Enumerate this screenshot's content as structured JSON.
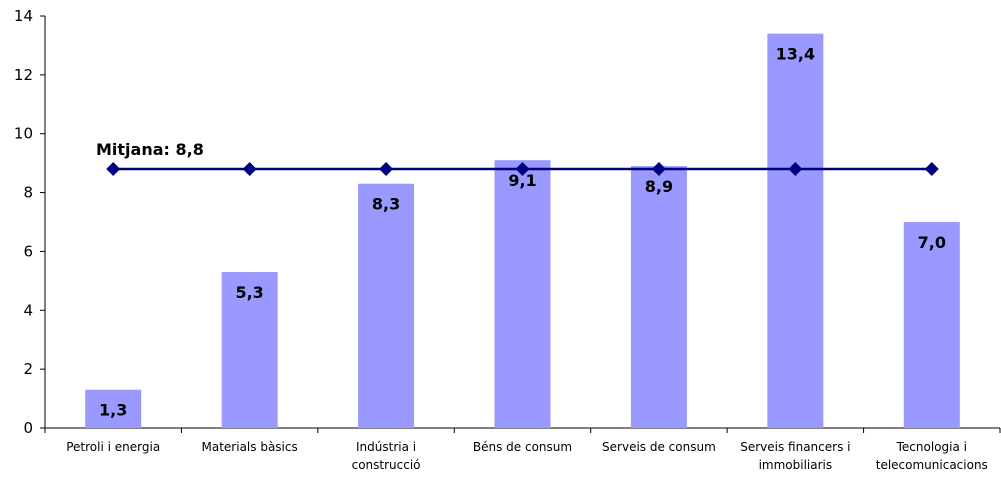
{
  "chart_data": {
    "type": "bar",
    "categories": [
      [
        "Petroli i energia"
      ],
      [
        "Materials bàsics"
      ],
      [
        "Indústria i",
        "construcció"
      ],
      [
        "Béns de consum"
      ],
      [
        "Serveis de consum"
      ],
      [
        "Serveis financers i",
        "immobiliaris"
      ],
      [
        "Tecnologia i",
        "telecomunicacions"
      ]
    ],
    "values": [
      1.3,
      5.3,
      8.3,
      9.1,
      8.9,
      13.4,
      7.0
    ],
    "data_labels": [
      "1,3",
      "5,3",
      "8,3",
      "9,1",
      "8,9",
      "13,4",
      "7,0"
    ],
    "ylim": [
      0,
      14
    ],
    "yticks": [
      0,
      2,
      4,
      6,
      8,
      10,
      12,
      14
    ],
    "grid": false,
    "mean_line": {
      "value": 8.8,
      "label": "Mitjana: 8,8"
    },
    "colors": {
      "bar": "#9999ff",
      "mean_line": "#000080",
      "axis": "#000000"
    }
  }
}
